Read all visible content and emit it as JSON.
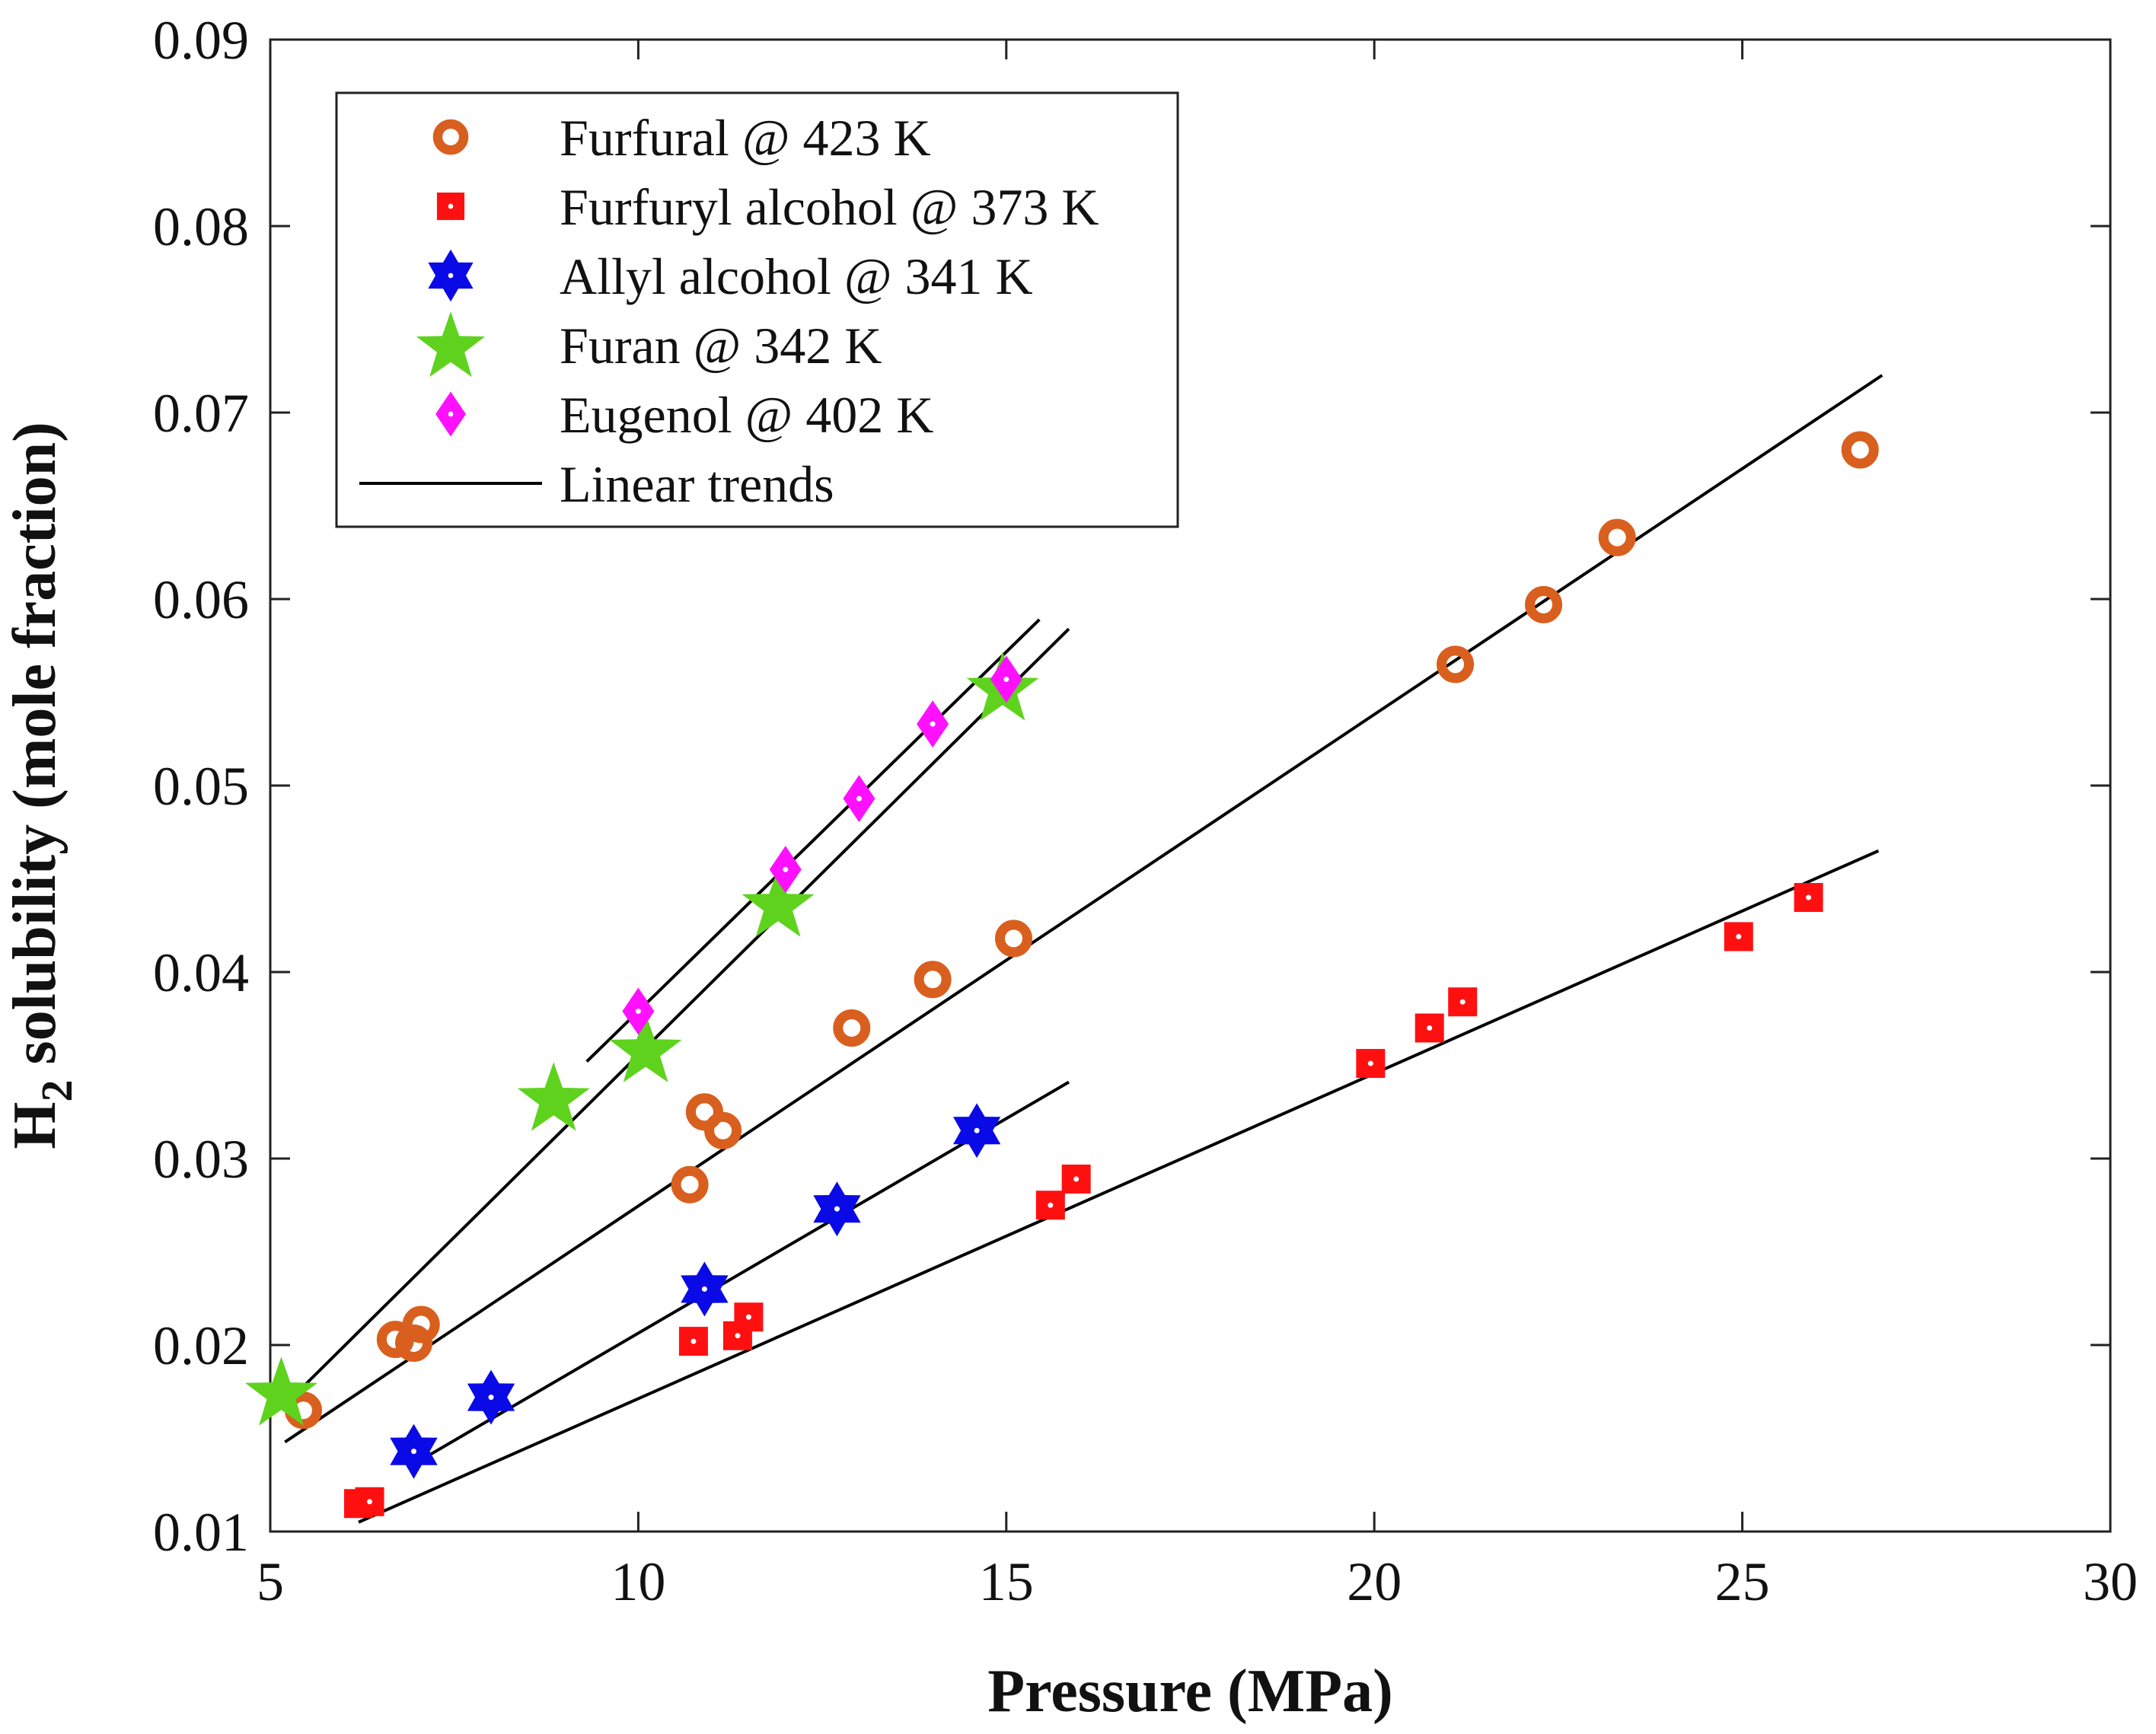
{
  "chart_data": {
    "type": "scatter",
    "title": "",
    "xlabel": "Pressure (MPa)",
    "ylabel": {
      "prefix": "H",
      "subscript": "2",
      "suffix": " solubility (mole fraction)"
    },
    "xlim": [
      5,
      30
    ],
    "ylim": [
      0.01,
      0.09
    ],
    "xticks": [
      5,
      10,
      15,
      20,
      25,
      30
    ],
    "yticks": [
      0.01,
      0.02,
      0.03,
      0.04,
      0.05,
      0.06,
      0.07,
      0.08,
      0.09
    ],
    "xtick_labels": [
      "5",
      "10",
      "15",
      "20",
      "25",
      "30"
    ],
    "ytick_labels": [
      "0.01",
      "0.02",
      "0.03",
      "0.04",
      "0.05",
      "0.06",
      "0.07",
      "0.08",
      "0.09"
    ],
    "grid": false,
    "legend_position": "top-left",
    "series": [
      {
        "name": "Furfural @ 423 K",
        "marker": "circle",
        "color": "#d95f1e",
        "x": [
          5.45,
          6.7,
          6.95,
          7.05,
          10.7,
          10.9,
          11.15,
          12.9,
          14.0,
          15.1,
          21.1,
          22.3,
          23.3,
          26.6
        ],
        "y": [
          0.0165,
          0.0203,
          0.0201,
          0.0211,
          0.0286,
          0.0325,
          0.0315,
          0.037,
          0.0396,
          0.0418,
          0.0565,
          0.0597,
          0.0633,
          0.068
        ]
      },
      {
        "name": "Furfuryl alcohol @ 373 K",
        "marker": "square",
        "color": "#ff1010",
        "x": [
          6.2,
          6.35,
          10.75,
          11.35,
          11.5,
          15.6,
          15.95,
          19.95,
          20.75,
          21.2,
          24.95,
          25.9
        ],
        "y": [
          0.0115,
          0.0116,
          0.0202,
          0.0205,
          0.0215,
          0.0275,
          0.0289,
          0.0351,
          0.037,
          0.0384,
          0.0419,
          0.044
        ]
      },
      {
        "name": "Allyl alcohol @ 341 K",
        "marker": "hexagram",
        "color": "#0a0ae6",
        "x": [
          6.95,
          8.0,
          10.9,
          12.7,
          14.6
        ],
        "y": [
          0.0143,
          0.0172,
          0.023,
          0.0273,
          0.0315
        ]
      },
      {
        "name": "Furan @ 342 K",
        "marker": "pentagram",
        "color": "#5fd21e",
        "x": [
          5.15,
          8.85,
          10.1,
          11.9,
          14.95
        ],
        "y": [
          0.0175,
          0.0333,
          0.0359,
          0.0437,
          0.0553
        ]
      },
      {
        "name": "Eugenol @ 402 K",
        "marker": "diamond",
        "color": "#ff10ff",
        "x": [
          10.0,
          12.0,
          13.0,
          14.0,
          15.0
        ],
        "y": [
          0.0379,
          0.0455,
          0.0493,
          0.0533,
          0.0557
        ]
      }
    ],
    "trend_lines": [
      {
        "name": "Linear trends",
        "x": [
          5.2,
          15.85
        ],
        "y": [
          0.0168,
          0.0584
        ]
      },
      {
        "name": "Linear trends",
        "x": [
          9.3,
          15.45
        ],
        "y": [
          0.0352,
          0.0589
        ]
      },
      {
        "name": "Linear trends",
        "x": [
          5.2,
          26.9
        ],
        "y": [
          0.0148,
          0.072
        ]
      },
      {
        "name": "Linear trends",
        "x": [
          6.9,
          15.85
        ],
        "y": [
          0.0135,
          0.0341
        ]
      },
      {
        "name": "Linear trends",
        "x": [
          6.2,
          26.85
        ],
        "y": [
          0.0105,
          0.0465
        ]
      }
    ],
    "legend": [
      {
        "label": "Furfural @ 423 K",
        "marker": "circle",
        "color": "#d95f1e"
      },
      {
        "label": "Furfuryl alcohol @ 373 K",
        "marker": "square",
        "color": "#ff1010"
      },
      {
        "label": "Allyl alcohol @ 341 K",
        "marker": "hexagram",
        "color": "#0a0ae6"
      },
      {
        "label": "Furan @ 342 K",
        "marker": "pentagram",
        "color": "#5fd21e"
      },
      {
        "label": "Eugenol @ 402 K",
        "marker": "diamond",
        "color": "#ff10ff"
      },
      {
        "label": "Linear trends",
        "marker": "line",
        "color": "#000000"
      }
    ]
  }
}
